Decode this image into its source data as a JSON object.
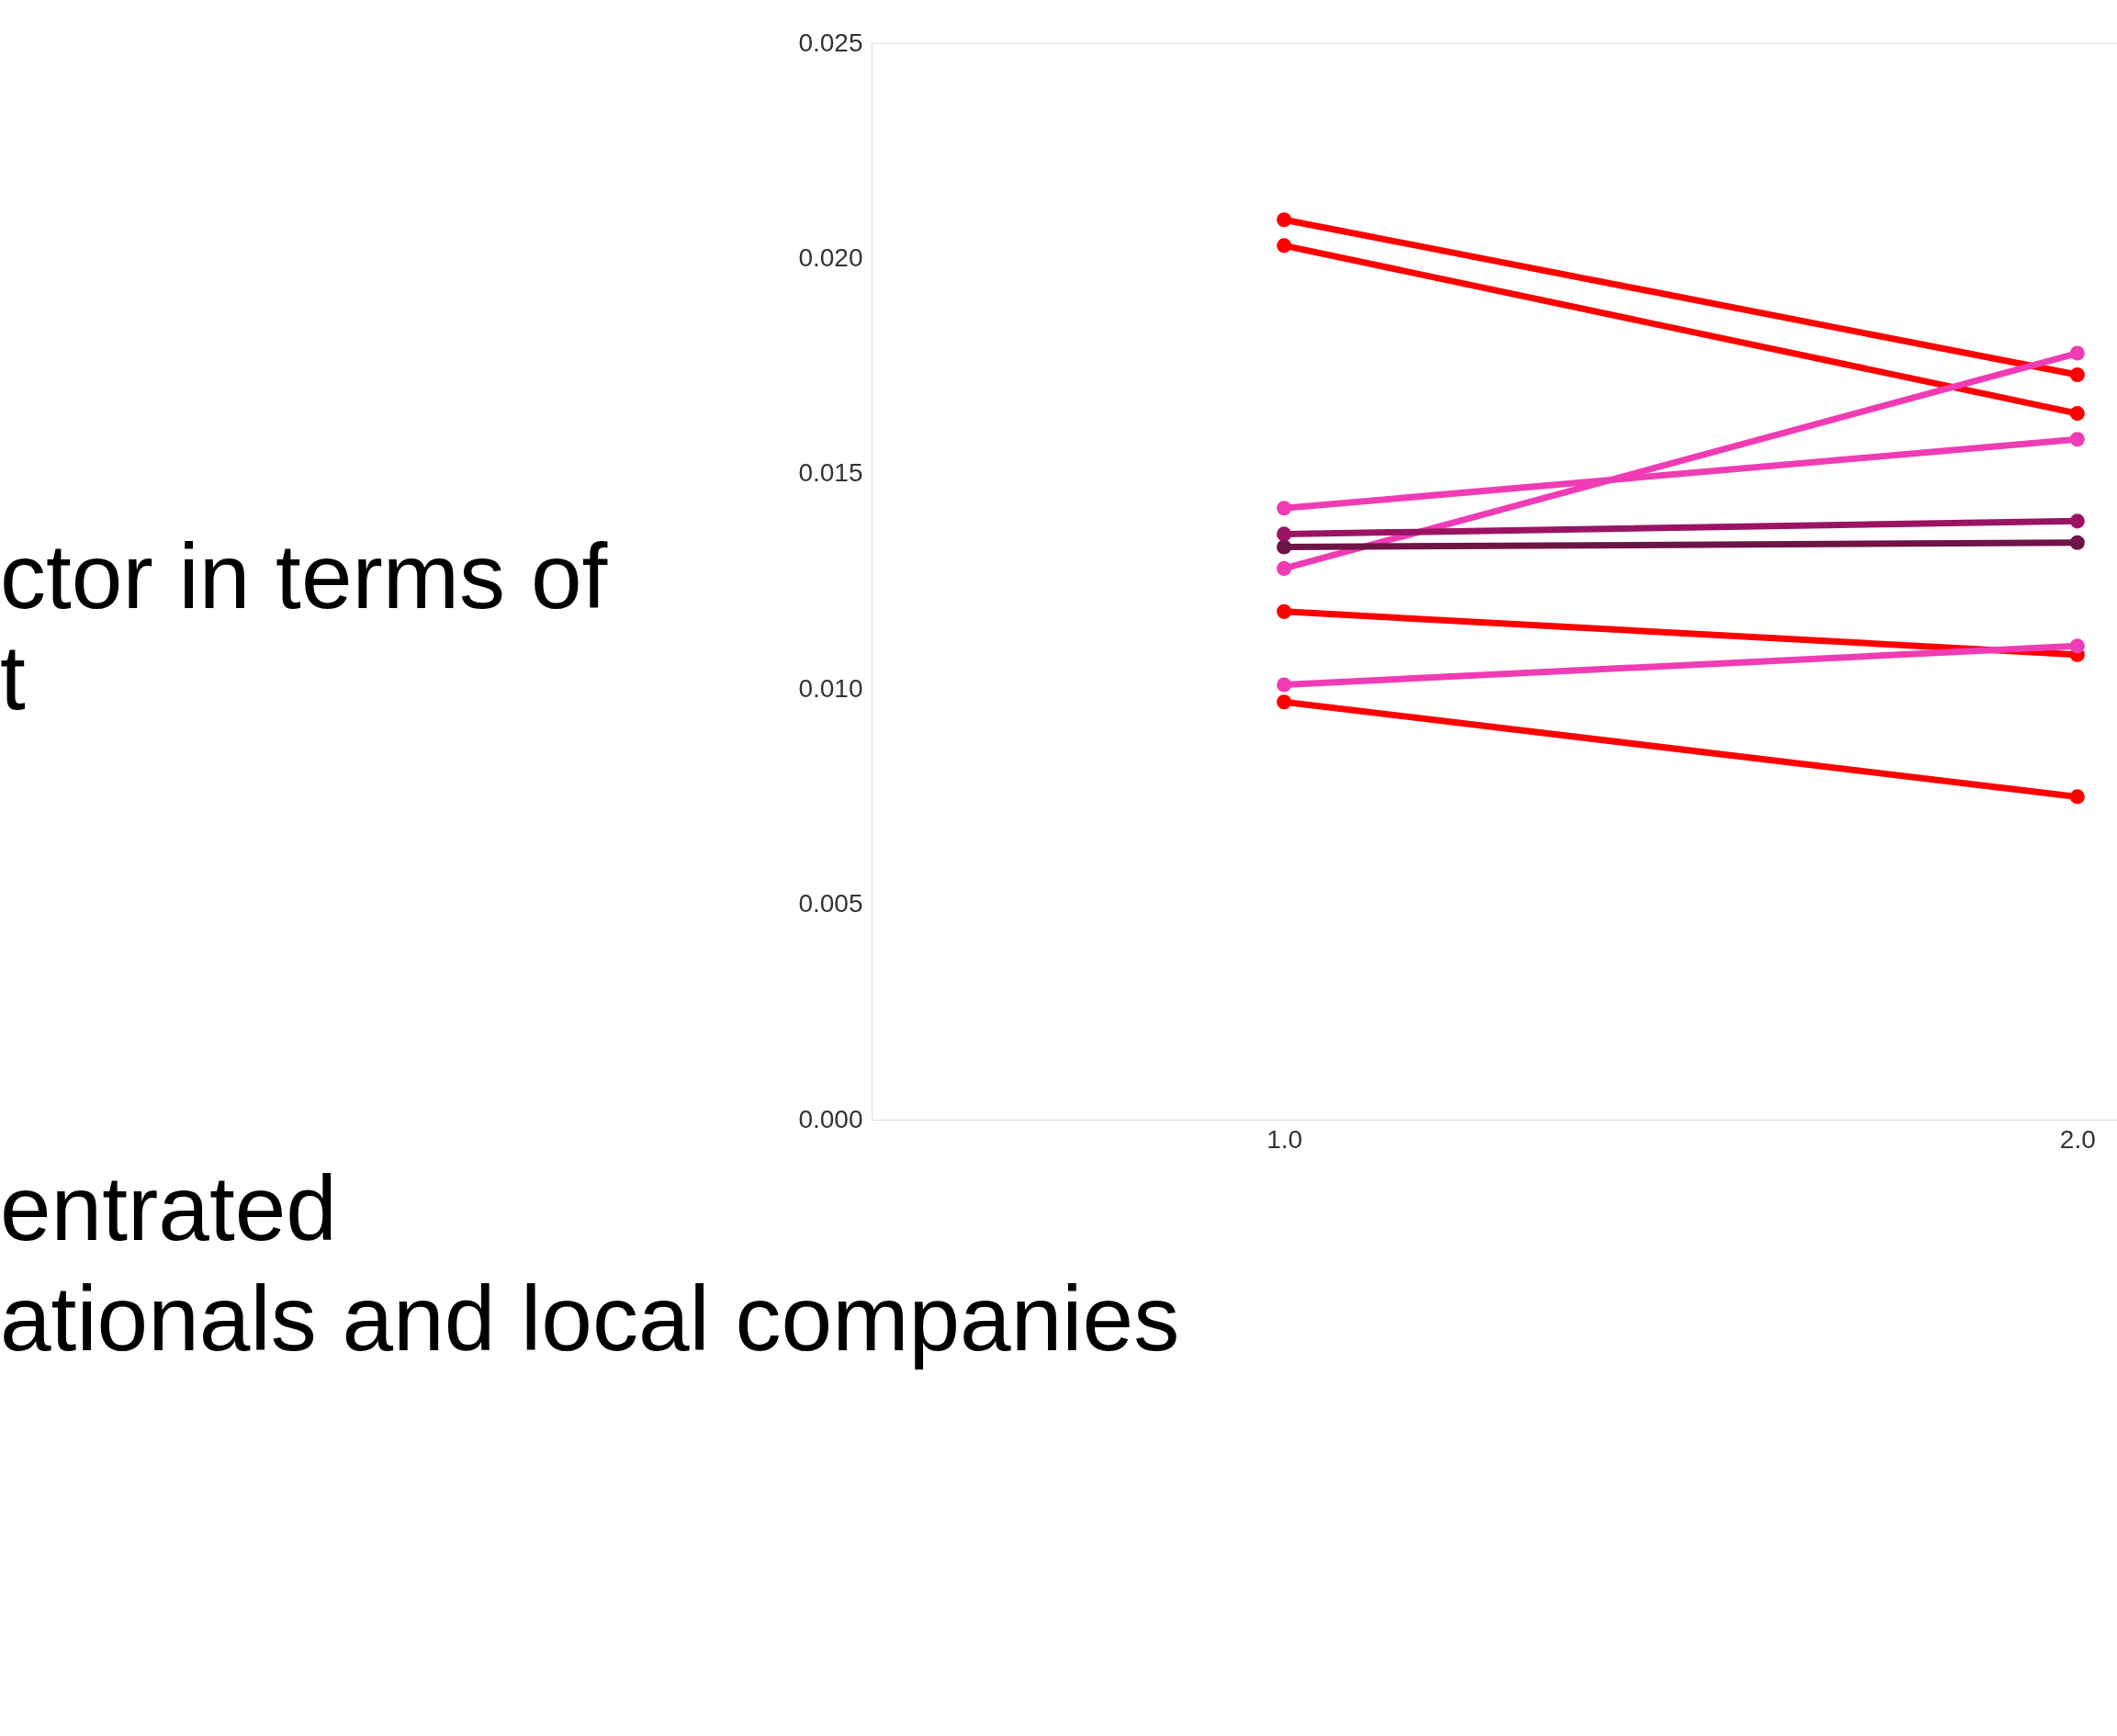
{
  "chart_data": {
    "type": "line",
    "marker": "circle",
    "line_style": "solid",
    "grid": false,
    "x": [
      1,
      2
    ],
    "xlim": [
      0.48,
      2.05
    ],
    "xticks": [
      {
        "value": 1,
        "label": "1.0"
      },
      {
        "value": 2,
        "label": "2.0"
      }
    ],
    "ylim": [
      0,
      0.025
    ],
    "yticks": [
      {
        "value": 0,
        "label": "0.000"
      },
      {
        "value": 0.005,
        "label": "0.005"
      },
      {
        "value": 0.01,
        "label": "0.010"
      },
      {
        "value": 0.015,
        "label": "0.015"
      },
      {
        "value": 0.02,
        "label": "0.020"
      },
      {
        "value": 0.025,
        "label": "0.025"
      }
    ],
    "series": [
      {
        "color": "#ff0000",
        "values": [
          0.0209,
          0.0173
        ]
      },
      {
        "color": "#ff0000",
        "values": [
          0.0203,
          0.0164
        ]
      },
      {
        "color": "#f03cb4",
        "values": [
          0.0128,
          0.0178
        ]
      },
      {
        "color": "#f03cb4",
        "values": [
          0.0142,
          0.0158
        ]
      },
      {
        "color": "#9b1464",
        "values": [
          0.0136,
          0.0139
        ]
      },
      {
        "color": "#6e1446",
        "values": [
          0.0133,
          0.0134
        ]
      },
      {
        "color": "#ff0000",
        "values": [
          0.0118,
          0.0108
        ]
      },
      {
        "color": "#f03cb4",
        "values": [
          0.0101,
          0.011
        ]
      },
      {
        "color": "#ff0000",
        "values": [
          0.0097,
          0.0075
        ]
      }
    ],
    "annotations": [
      "ctor in terms of",
      "t",
      "entrated",
      "ationals and local companies"
    ]
  }
}
